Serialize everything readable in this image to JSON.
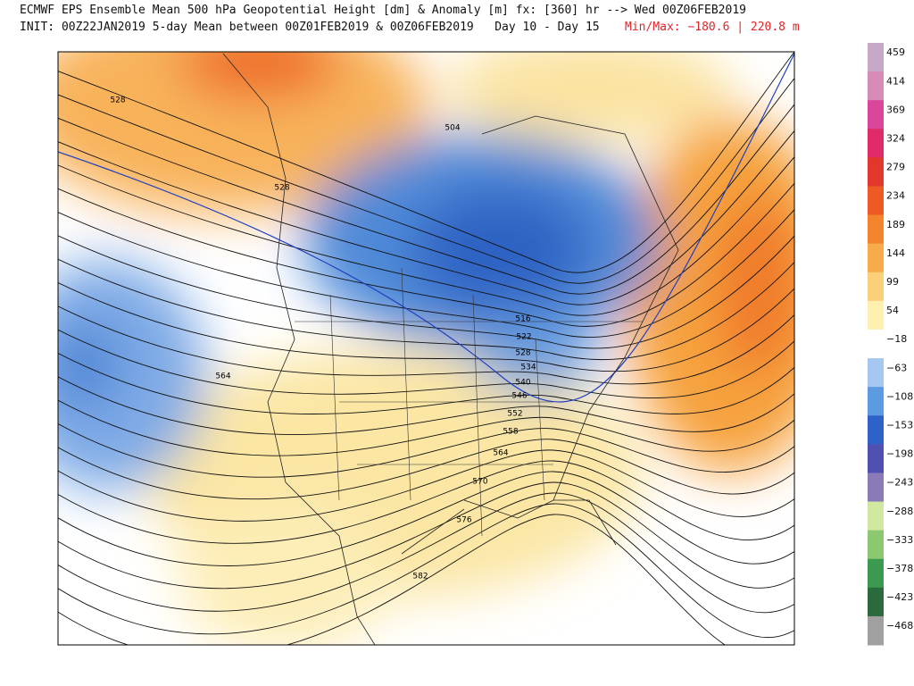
{
  "header": {
    "line1": "ECMWF EPS Ensemble Mean 500 hPa Geopotential Height [dm] & Anomaly [m] fx: [360] hr --> Wed 00Z06FEB2019",
    "line2": "INIT: 00Z22JAN2019 5-day Mean between 00Z01FEB2019 & 00Z06FEB2019",
    "period": "Day 10 - Day 15",
    "minmax": "Min/Max: −180.6 | 220.8 m"
  },
  "contour_labels": [
    "528",
    "528",
    "504",
    "516",
    "522",
    "528",
    "534",
    "540",
    "546",
    "552",
    "558",
    "564",
    "570",
    "576",
    "582",
    "564"
  ],
  "colorbar": {
    "labels": [
      "459",
      "414",
      "369",
      "324",
      "279",
      "234",
      "189",
      "144",
      "99",
      "54",
      "−18",
      "−63",
      "−108",
      "−153",
      "−198",
      "−243",
      "−288",
      "−333",
      "−378",
      "−423",
      "−468"
    ],
    "colors": [
      "#c8a8c8",
      "#d88ab8",
      "#d9469a",
      "#e02a6a",
      "#e2372c",
      "#ee5a24",
      "#f4842c",
      "#f7ab4a",
      "#fcd07a",
      "#fdf0b0",
      "#ffffff",
      "#a6c8f0",
      "#5c9be0",
      "#2f62c8",
      "#5050b0",
      "#8a7ab8",
      "#d0e8a0",
      "#8cc870",
      "#3c9a50",
      "#2a6a3c",
      "#a0a0a0"
    ]
  }
}
